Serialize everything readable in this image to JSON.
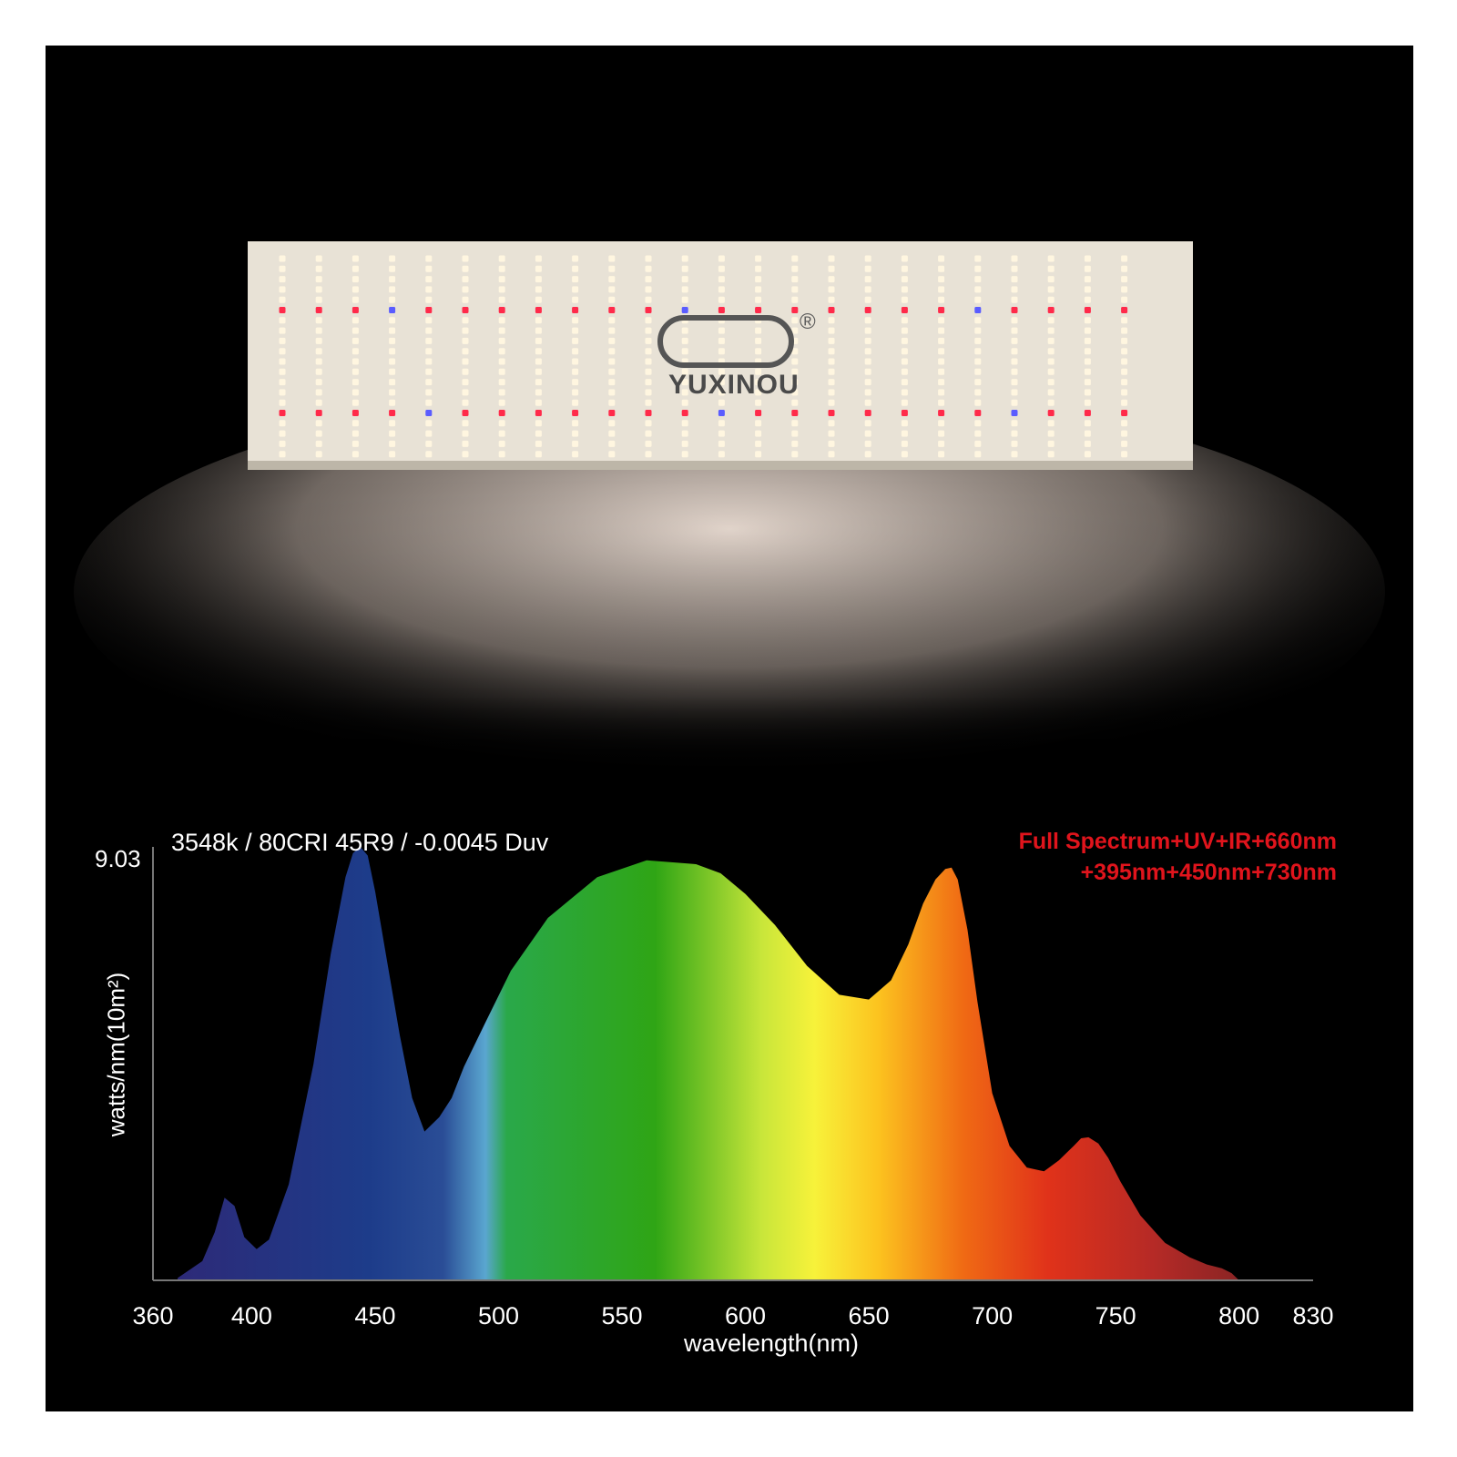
{
  "product": {
    "brand_name": "YUXINOU",
    "trademark_symbol": "®"
  },
  "spectrum": {
    "heading": "3548k / 80CRI 45R9 / -0.0045 Duv",
    "promo_line_1": "Full  Spectrum+UV+IR+660nm",
    "promo_line_2": "+395nm+450nm+730nm"
  },
  "colors": {
    "background": "#000000",
    "promo_text": "#e0141c",
    "board": "#e8e2d6",
    "warm_led": "#fff6e0",
    "red_led": "#ff2a4a",
    "blue_led": "#5a5cff"
  },
  "chart_data": {
    "type": "area",
    "title": "",
    "xlabel": "wavelength(nm)",
    "ylabel": "watts/nm(10m²)",
    "y_max_label": "9.03",
    "xlim": [
      360,
      830
    ],
    "ylim": [
      0,
      9.03
    ],
    "x_ticks": [
      "360",
      "400",
      "450",
      "500",
      "550",
      "600",
      "650",
      "700",
      "750",
      "800",
      "830"
    ],
    "grid": false,
    "series": [
      {
        "x": [
          370,
          380,
          385,
          389,
          393,
          397,
          402,
          407,
          415,
          425,
          432,
          438,
          441,
          444,
          447,
          450,
          455,
          460,
          465,
          470,
          476,
          481,
          486,
          494,
          505,
          520,
          540,
          560,
          580,
          590,
          600,
          612,
          625,
          638,
          650,
          659,
          666,
          672,
          677,
          681,
          683.5,
          686,
          690,
          694,
          700,
          707,
          714,
          721,
          727,
          733,
          736,
          739,
          743,
          747,
          752,
          760,
          770,
          780,
          787,
          793,
          797,
          800
        ],
        "y": [
          0.05,
          0.4,
          1.0,
          1.72,
          1.55,
          0.9,
          0.65,
          0.85,
          2.0,
          4.5,
          6.8,
          8.4,
          8.9,
          9.03,
          8.85,
          8.1,
          6.6,
          5.1,
          3.8,
          3.1,
          3.4,
          3.8,
          4.45,
          5.3,
          6.45,
          7.55,
          8.4,
          8.75,
          8.67,
          8.48,
          8.05,
          7.4,
          6.55,
          5.95,
          5.85,
          6.25,
          7.0,
          7.85,
          8.35,
          8.57,
          8.6,
          8.35,
          7.3,
          5.8,
          3.9,
          2.8,
          2.35,
          2.27,
          2.5,
          2.8,
          2.96,
          2.98,
          2.85,
          2.55,
          2.05,
          1.35,
          0.78,
          0.48,
          0.33,
          0.25,
          0.15,
          0.0
        ]
      }
    ]
  }
}
